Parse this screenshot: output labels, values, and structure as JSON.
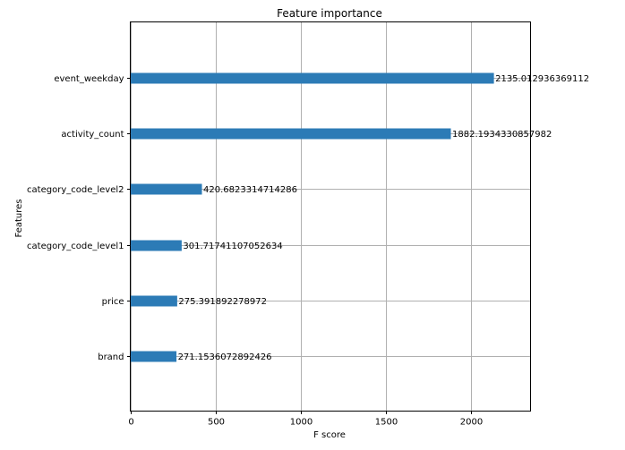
{
  "chart_data": {
    "type": "bar",
    "orientation": "horizontal",
    "title": "Feature importance",
    "xlabel": "F score",
    "ylabel": "Features",
    "categories": [
      "brand",
      "price",
      "category_code_level1",
      "category_code_level2",
      "activity_count",
      "event_weekday"
    ],
    "values": [
      271.1536072892426,
      275.391892278972,
      301.71741107052634,
      420.6823314714286,
      1882.1934330857982,
      2135.012936369112
    ],
    "data_labels": [
      "271.1536072892426",
      "275.391892278972",
      "301.71741107052634",
      "420.6823314714286",
      "1882.1934330857982",
      "2135.012936369112"
    ],
    "xlim": [
      0,
      2350
    ],
    "xticks": [
      0,
      500,
      1000,
      1500,
      2000
    ],
    "xtick_labels": [
      "0",
      "500",
      "1000",
      "1500",
      "2000"
    ],
    "grid": true,
    "bar_color": "#2c7bb6"
  }
}
